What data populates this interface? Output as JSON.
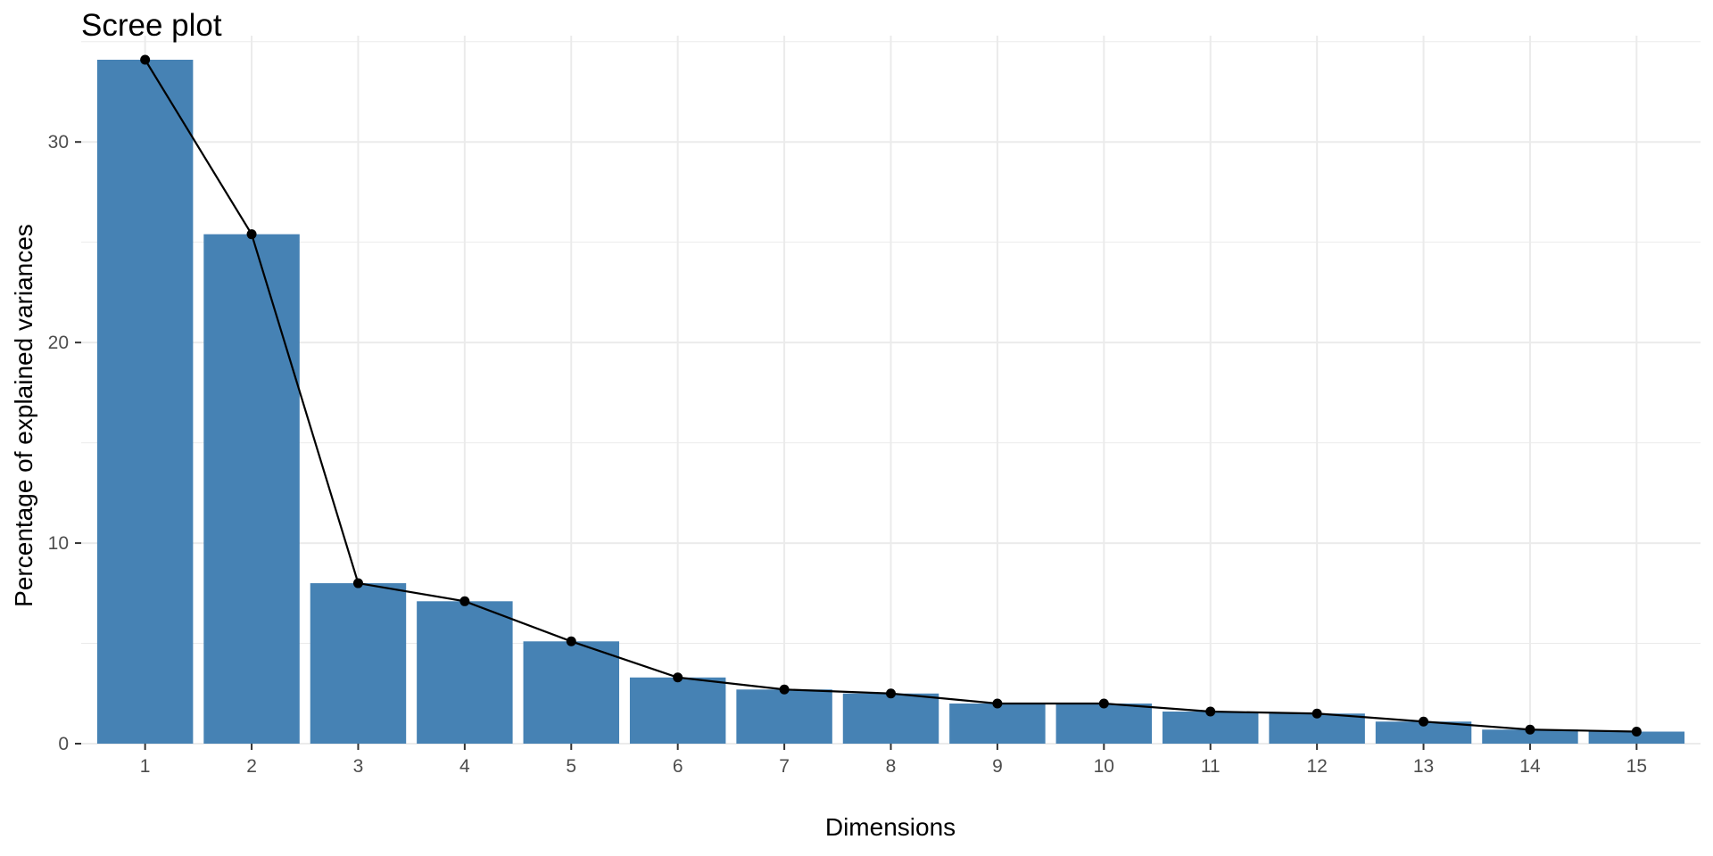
{
  "chart_data": {
    "type": "bar",
    "title": "Scree plot",
    "xlabel": "Dimensions",
    "ylabel": "Percentage of explained variances",
    "categories": [
      "1",
      "2",
      "3",
      "4",
      "5",
      "6",
      "7",
      "8",
      "9",
      "10",
      "11",
      "12",
      "13",
      "14",
      "15"
    ],
    "values": [
      34.1,
      25.4,
      8.0,
      7.1,
      5.1,
      3.3,
      2.7,
      2.5,
      2.0,
      2.0,
      1.6,
      1.5,
      1.1,
      0.7,
      0.6
    ],
    "line_overlay": true,
    "ylim": [
      0,
      35.3
    ],
    "yticks": [
      0,
      10,
      20,
      30
    ],
    "grid": true,
    "legend": "none",
    "colors": {
      "bar": "#4682B4",
      "line": "#000000",
      "point": "#000000",
      "grid": "#ebebeb"
    }
  }
}
